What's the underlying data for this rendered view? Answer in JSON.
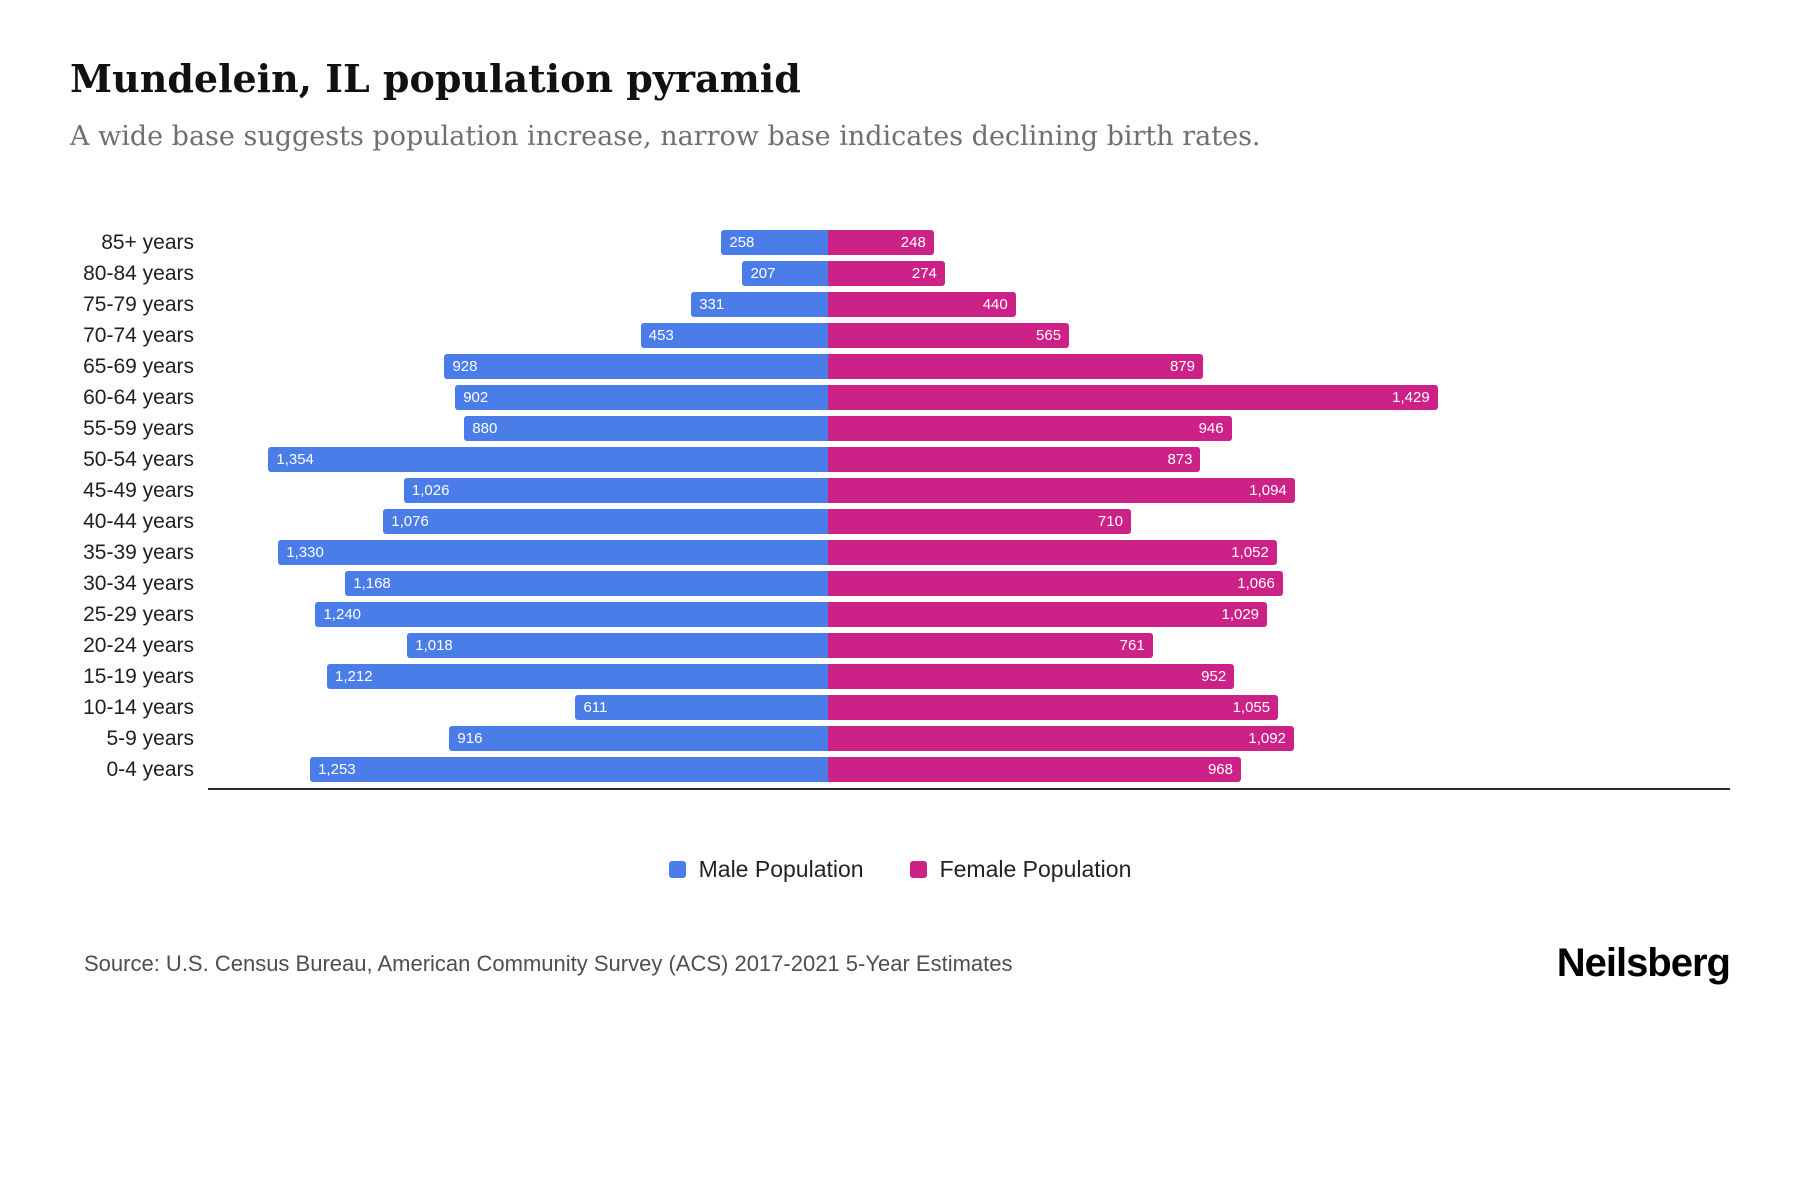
{
  "header": {
    "title": "Mundelein, IL population pyramid",
    "subtitle": "A wide base suggests population increase, narrow base indicates declining birth rates."
  },
  "chart_data": {
    "type": "bar",
    "variant": "population-pyramid",
    "title": "Mundelein, IL population pyramid",
    "categories": [
      "85+ years",
      "80-84 years",
      "75-79 years",
      "70-74 years",
      "65-69 years",
      "60-64 years",
      "55-59 years",
      "50-54 years",
      "45-49 years",
      "40-44 years",
      "35-39 years",
      "30-34 years",
      "25-29 years",
      "20-24 years",
      "15-19 years",
      "10-14 years",
      "5-9 years",
      "0-4 years"
    ],
    "series": [
      {
        "name": "Male Population",
        "color": "#4A7DE8",
        "side": "left",
        "values": [
          258,
          207,
          331,
          453,
          928,
          902,
          880,
          1354,
          1026,
          1076,
          1330,
          1168,
          1240,
          1018,
          1212,
          611,
          916,
          1253
        ]
      },
      {
        "name": "Female Population",
        "color": "#CC2288",
        "side": "right",
        "values": [
          248,
          274,
          440,
          565,
          879,
          1429,
          946,
          873,
          1094,
          710,
          1052,
          1066,
          1029,
          761,
          952,
          1055,
          1092,
          968
        ]
      }
    ],
    "xlim_per_side": [
      0,
      1500
    ],
    "grid": false,
    "legend_position": "bottom",
    "value_labels": "inside-bar-outer-end"
  },
  "footer": {
    "source": "Source: U.S. Census Bureau, American Community Survey (ACS) 2017-2021 5-Year Estimates",
    "brand": "Neilsberg"
  }
}
